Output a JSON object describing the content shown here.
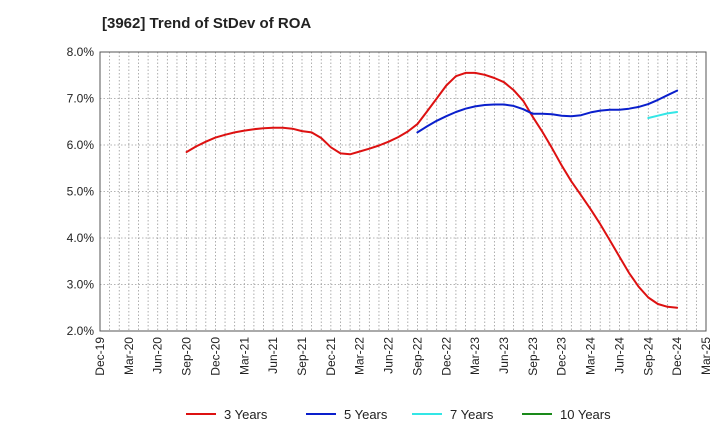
{
  "chart_data": {
    "type": "line",
    "title": "[3962]  Trend of StDev of ROA",
    "xlabel": "",
    "ylabel": "",
    "x_ticks": [
      "Dec-19",
      "Mar-20",
      "Jun-20",
      "Sep-20",
      "Dec-20",
      "Mar-21",
      "Jun-21",
      "Sep-21",
      "Dec-21",
      "Mar-22",
      "Jun-22",
      "Sep-22",
      "Dec-22",
      "Mar-23",
      "Jun-23",
      "Sep-23",
      "Dec-23",
      "Mar-24",
      "Jun-24",
      "Sep-24",
      "Dec-24",
      "Mar-25"
    ],
    "y_ticks": [
      "2.0%",
      "3.0%",
      "4.0%",
      "5.0%",
      "6.0%",
      "7.0%",
      "8.0%"
    ],
    "ylim": [
      2.0,
      8.0
    ],
    "grid": true,
    "legend_position": "bottom",
    "series": [
      {
        "name": "3 Years",
        "color": "#dd1111",
        "x": [
          "Sep-20",
          "Oct-20",
          "Nov-20",
          "Dec-20",
          "Jan-21",
          "Feb-21",
          "Mar-21",
          "Apr-21",
          "May-21",
          "Jun-21",
          "Jul-21",
          "Aug-21",
          "Sep-21",
          "Oct-21",
          "Nov-21",
          "Dec-21",
          "Jan-22",
          "Feb-22",
          "Mar-22",
          "Apr-22",
          "May-22",
          "Jun-22",
          "Jul-22",
          "Aug-22",
          "Sep-22",
          "Oct-22",
          "Nov-22",
          "Dec-22",
          "Jan-23",
          "Feb-23",
          "Mar-23",
          "Apr-23",
          "May-23",
          "Jun-23",
          "Jul-23",
          "Aug-23",
          "Sep-23",
          "Oct-23",
          "Nov-23",
          "Dec-23",
          "Jan-24",
          "Feb-24",
          "Mar-24",
          "Apr-24",
          "May-24",
          "Jun-24",
          "Jul-24",
          "Aug-24",
          "Sep-24",
          "Oct-24",
          "Nov-24",
          "Dec-24"
        ],
        "values": [
          5.85,
          5.97,
          6.07,
          6.16,
          6.22,
          6.27,
          6.31,
          6.34,
          6.36,
          6.37,
          6.37,
          6.35,
          6.3,
          6.27,
          6.15,
          5.95,
          5.82,
          5.8,
          5.86,
          5.92,
          5.99,
          6.07,
          6.17,
          6.29,
          6.45,
          6.72,
          7.0,
          7.28,
          7.48,
          7.55,
          7.55,
          7.51,
          7.44,
          7.35,
          7.18,
          6.95,
          6.6,
          6.28,
          5.93,
          5.56,
          5.22,
          4.92,
          4.62,
          4.3,
          3.95,
          3.6,
          3.25,
          2.95,
          2.72,
          2.58,
          2.52,
          2.5
        ]
      },
      {
        "name": "5 Years",
        "color": "#0a1fcc",
        "x": [
          "Sep-22",
          "Oct-22",
          "Nov-22",
          "Dec-22",
          "Jan-23",
          "Feb-23",
          "Mar-23",
          "Apr-23",
          "May-23",
          "Jun-23",
          "Jul-23",
          "Aug-23",
          "Sep-23",
          "Oct-23",
          "Nov-23",
          "Dec-23",
          "Jan-24",
          "Feb-24",
          "Mar-24",
          "Apr-24",
          "May-24",
          "Jun-24",
          "Jul-24",
          "Aug-24",
          "Sep-24",
          "Oct-24",
          "Nov-24",
          "Dec-24"
        ],
        "values": [
          6.27,
          6.4,
          6.52,
          6.62,
          6.71,
          6.78,
          6.83,
          6.86,
          6.87,
          6.87,
          6.84,
          6.77,
          6.67,
          6.67,
          6.66,
          6.63,
          6.62,
          6.64,
          6.7,
          6.74,
          6.76,
          6.76,
          6.78,
          6.82,
          6.88,
          6.97,
          7.07,
          7.17
        ]
      },
      {
        "name": "7 Years",
        "color": "#33e6e6",
        "x": [
          "Sep-24",
          "Oct-24",
          "Nov-24",
          "Dec-24"
        ],
        "values": [
          6.58,
          6.63,
          6.68,
          6.71
        ]
      },
      {
        "name": "10 Years",
        "color": "#1a8a1a",
        "x": [],
        "values": []
      }
    ]
  }
}
